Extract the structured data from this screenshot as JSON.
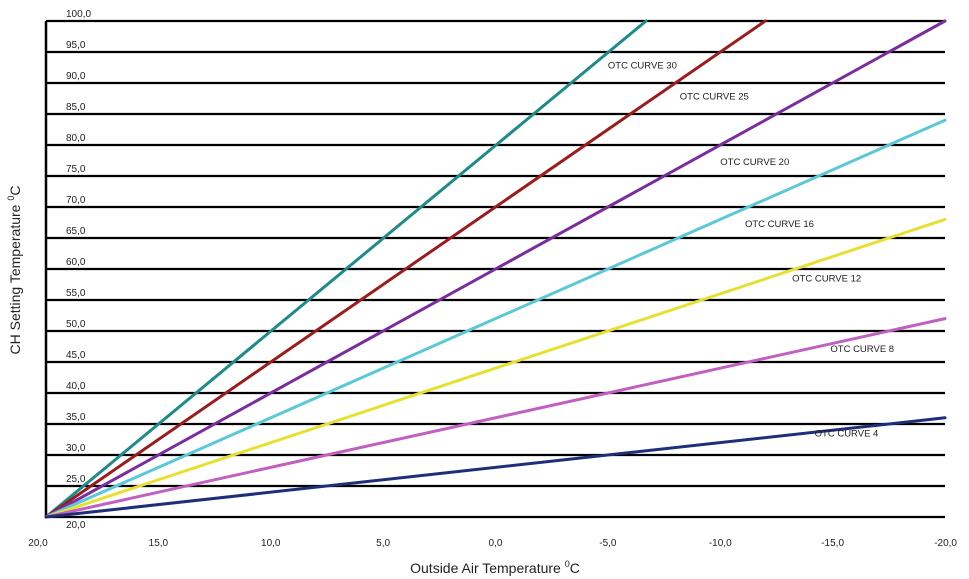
{
  "chart_data": {
    "type": "line",
    "title": "",
    "xlabel": "Outside Air Temperature",
    "xlabel_unit": "C",
    "ylabel": "CH Setting Temperature",
    "ylabel_unit": "C",
    "degree_symbol": "0",
    "xlim": [
      20,
      -20
    ],
    "ylim": [
      20,
      100
    ],
    "x_ticks": [
      20,
      15,
      10,
      5,
      0,
      -5,
      -10,
      -15,
      -20
    ],
    "x_tick_labels": [
      "20,0",
      "15,0",
      "10,0",
      "5,0",
      "0,0",
      "-5,0",
      "-10,0",
      "-15,0",
      "-20,0"
    ],
    "y_ticks": [
      20,
      25,
      30,
      35,
      40,
      45,
      50,
      55,
      60,
      65,
      70,
      75,
      80,
      85,
      90,
      95,
      100
    ],
    "y_tick_labels": [
      "20,0",
      "25,0",
      "30,0",
      "35,0",
      "40,0",
      "45,0",
      "50,0",
      "55,0",
      "60,0",
      "65,0",
      "70,0",
      "75,0",
      "80,0",
      "85,0",
      "90,0",
      "95,0",
      "100,0"
    ],
    "grid": "horizontal",
    "series": [
      {
        "name": "OTC CURVE 30",
        "color": "#1f8a8a",
        "x": [
          20,
          -6.7
        ],
        "y": [
          20,
          100
        ],
        "label_at": [
          -5.0,
          92.3
        ]
      },
      {
        "name": "OTC CURVE 25",
        "color": "#9b1c1c",
        "x": [
          20,
          -12
        ],
        "y": [
          20,
          100
        ],
        "label_at": [
          -8.2,
          87.3
        ]
      },
      {
        "name": "OTC CURVE 20",
        "color": "#7b2c9e",
        "x": [
          20,
          -20
        ],
        "y": [
          20,
          100
        ],
        "label_at": [
          -10.0,
          76.8
        ]
      },
      {
        "name": "OTC CURVE 16",
        "color": "#5ac8d8",
        "x": [
          20,
          -20
        ],
        "y": [
          20,
          84
        ],
        "label_at": [
          -11.1,
          66.8
        ]
      },
      {
        "name": "OTC CURVE 12",
        "color": "#e8e030",
        "x": [
          20,
          -20
        ],
        "y": [
          20,
          68
        ],
        "label_at": [
          -13.2,
          58.0
        ]
      },
      {
        "name": "OTC CURVE 8",
        "color": "#c060c0",
        "x": [
          20,
          -20
        ],
        "y": [
          20,
          52
        ],
        "label_at": [
          -14.9,
          46.6
        ]
      },
      {
        "name": "OTC CURVE 4",
        "color": "#1f2e78",
        "x": [
          20,
          -20
        ],
        "y": [
          20,
          36
        ],
        "label_at": [
          -14.2,
          33.0
        ]
      }
    ]
  }
}
